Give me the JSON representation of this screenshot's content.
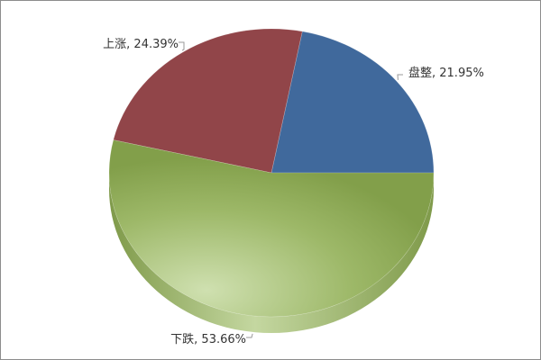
{
  "chart_data": {
    "type": "pie",
    "style": "3d",
    "start_angle_deg": 0,
    "direction": "counterclockwise",
    "slices": [
      {
        "label": "盘整",
        "value": 21.95,
        "display": "盘整, 21.95%",
        "color": "#40699c"
      },
      {
        "label": "上涨",
        "value": 24.39,
        "display": "上涨, 24.39%",
        "color": "#914549"
      },
      {
        "label": "下跌",
        "value": 53.66,
        "display": "下跌, 53.66%",
        "color": "#829f4a"
      }
    ],
    "legend": "none"
  }
}
